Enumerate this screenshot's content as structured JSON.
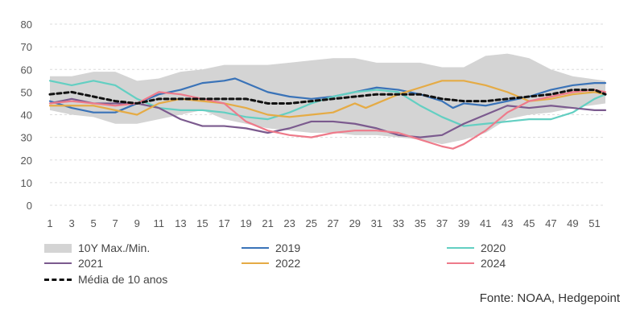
{
  "chart_data": {
    "type": "line",
    "title": "",
    "xlabel": "",
    "ylabel": "",
    "ylim": [
      0,
      80
    ],
    "yticks": [
      0,
      10,
      20,
      30,
      40,
      50,
      60,
      70,
      80
    ],
    "xticks": [
      1,
      3,
      5,
      7,
      9,
      11,
      13,
      15,
      17,
      19,
      21,
      23,
      25,
      27,
      29,
      31,
      33,
      35,
      37,
      39,
      41,
      43,
      45,
      47,
      49,
      51
    ],
    "xlim": [
      1,
      52
    ],
    "grid": "horizontal-dashed",
    "band": {
      "name": "10Y Max./Min.",
      "color": "#d4d4d4",
      "x": [
        1,
        3,
        5,
        7,
        9,
        11,
        13,
        15,
        17,
        19,
        21,
        23,
        25,
        27,
        29,
        31,
        33,
        35,
        37,
        39,
        41,
        43,
        45,
        47,
        49,
        52
      ],
      "upper": [
        57,
        57,
        59,
        59,
        55,
        56,
        59,
        60,
        62,
        62,
        62,
        63,
        64,
        65,
        65,
        63,
        63,
        63,
        61,
        61,
        66,
        67,
        65,
        60,
        57,
        55
      ],
      "lower": [
        42,
        40,
        39,
        36,
        36,
        38,
        40,
        42,
        38,
        36,
        34,
        33,
        32,
        32,
        31,
        31,
        30,
        29,
        27,
        29,
        32,
        38,
        40,
        41,
        43,
        45
      ]
    },
    "series": [
      {
        "name": "2019",
        "color": "#3a73b8",
        "dash": false,
        "x": [
          1,
          3,
          5,
          7,
          9,
          11,
          13,
          15,
          17,
          18,
          19,
          21,
          23,
          25,
          27,
          29,
          31,
          33,
          35,
          37,
          38,
          39,
          41,
          43,
          45,
          47,
          49,
          51,
          52
        ],
        "y": [
          46,
          43,
          41,
          41,
          45,
          49,
          51,
          54,
          55,
          56,
          54,
          50,
          48,
          47,
          48,
          50,
          52,
          51,
          49,
          46,
          43,
          45,
          44,
          46,
          48,
          51,
          53,
          54,
          54
        ]
      },
      {
        "name": "2020",
        "color": "#63cfc2",
        "dash": false,
        "x": [
          1,
          3,
          5,
          7,
          9,
          11,
          13,
          15,
          17,
          19,
          21,
          23,
          25,
          27,
          29,
          31,
          33,
          35,
          37,
          39,
          41,
          43,
          45,
          47,
          49,
          51,
          52
        ],
        "y": [
          55,
          53,
          55,
          53,
          47,
          43,
          42,
          42,
          41,
          39,
          38,
          41,
          45,
          48,
          50,
          51,
          50,
          44,
          39,
          35,
          36,
          37,
          38,
          38,
          41,
          47,
          49
        ]
      },
      {
        "name": "2021",
        "color": "#7b5a8e",
        "dash": false,
        "x": [
          1,
          3,
          5,
          7,
          9,
          11,
          13,
          15,
          17,
          19,
          21,
          23,
          25,
          27,
          29,
          31,
          33,
          35,
          37,
          39,
          41,
          43,
          45,
          47,
          49,
          51,
          52
        ],
        "y": [
          45,
          47,
          45,
          45,
          45,
          43,
          38,
          35,
          35,
          34,
          32,
          34,
          37,
          37,
          36,
          34,
          31,
          30,
          31,
          36,
          40,
          44,
          43,
          44,
          43,
          42,
          42
        ]
      },
      {
        "name": "2022",
        "color": "#e5ab45",
        "dash": false,
        "x": [
          1,
          3,
          5,
          7,
          9,
          11,
          13,
          15,
          17,
          19,
          21,
          23,
          25,
          27,
          29,
          30,
          31,
          33,
          35,
          37,
          39,
          41,
          43,
          45,
          47,
          49,
          51,
          52
        ],
        "y": [
          44,
          44,
          44,
          42,
          40,
          45,
          47,
          46,
          45,
          43,
          40,
          39,
          40,
          41,
          45,
          43,
          45,
          49,
          52,
          55,
          55,
          53,
          50,
          46,
          47,
          49,
          50,
          49
        ]
      },
      {
        "name": "2024",
        "color": "#ee7a8a",
        "dash": false,
        "x": [
          1,
          3,
          5,
          7,
          9,
          11,
          13,
          15,
          17,
          19,
          21,
          23,
          25,
          27,
          29,
          31,
          33,
          35,
          37,
          38,
          39,
          41,
          43,
          45,
          47,
          49,
          51,
          52
        ],
        "y": [
          45,
          46,
          45,
          44,
          45,
          50,
          49,
          47,
          45,
          37,
          33,
          31,
          30,
          32,
          33,
          33,
          32,
          29,
          26,
          25,
          27,
          33,
          41,
          46,
          48,
          50,
          51,
          50
        ]
      },
      {
        "name": "Média de 10 anos",
        "color": "#111111",
        "dash": true,
        "x": [
          1,
          3,
          5,
          7,
          9,
          11,
          13,
          15,
          17,
          19,
          21,
          23,
          25,
          27,
          29,
          31,
          33,
          35,
          37,
          39,
          41,
          43,
          45,
          47,
          49,
          51,
          52
        ],
        "y": [
          49,
          50,
          48,
          46,
          45,
          47,
          47,
          47,
          47,
          47,
          45,
          45,
          46,
          47,
          48,
          49,
          49,
          49,
          47,
          46,
          46,
          47,
          48,
          49,
          51,
          51,
          49
        ]
      }
    ],
    "legend": {
      "placement": "bottom",
      "items": [
        "10Y Max./Min.",
        "2019",
        "2020",
        "2021",
        "2022",
        "2024",
        "Média de 10 anos"
      ]
    },
    "source": "Fonte: NOAA, Hedgepoint"
  }
}
